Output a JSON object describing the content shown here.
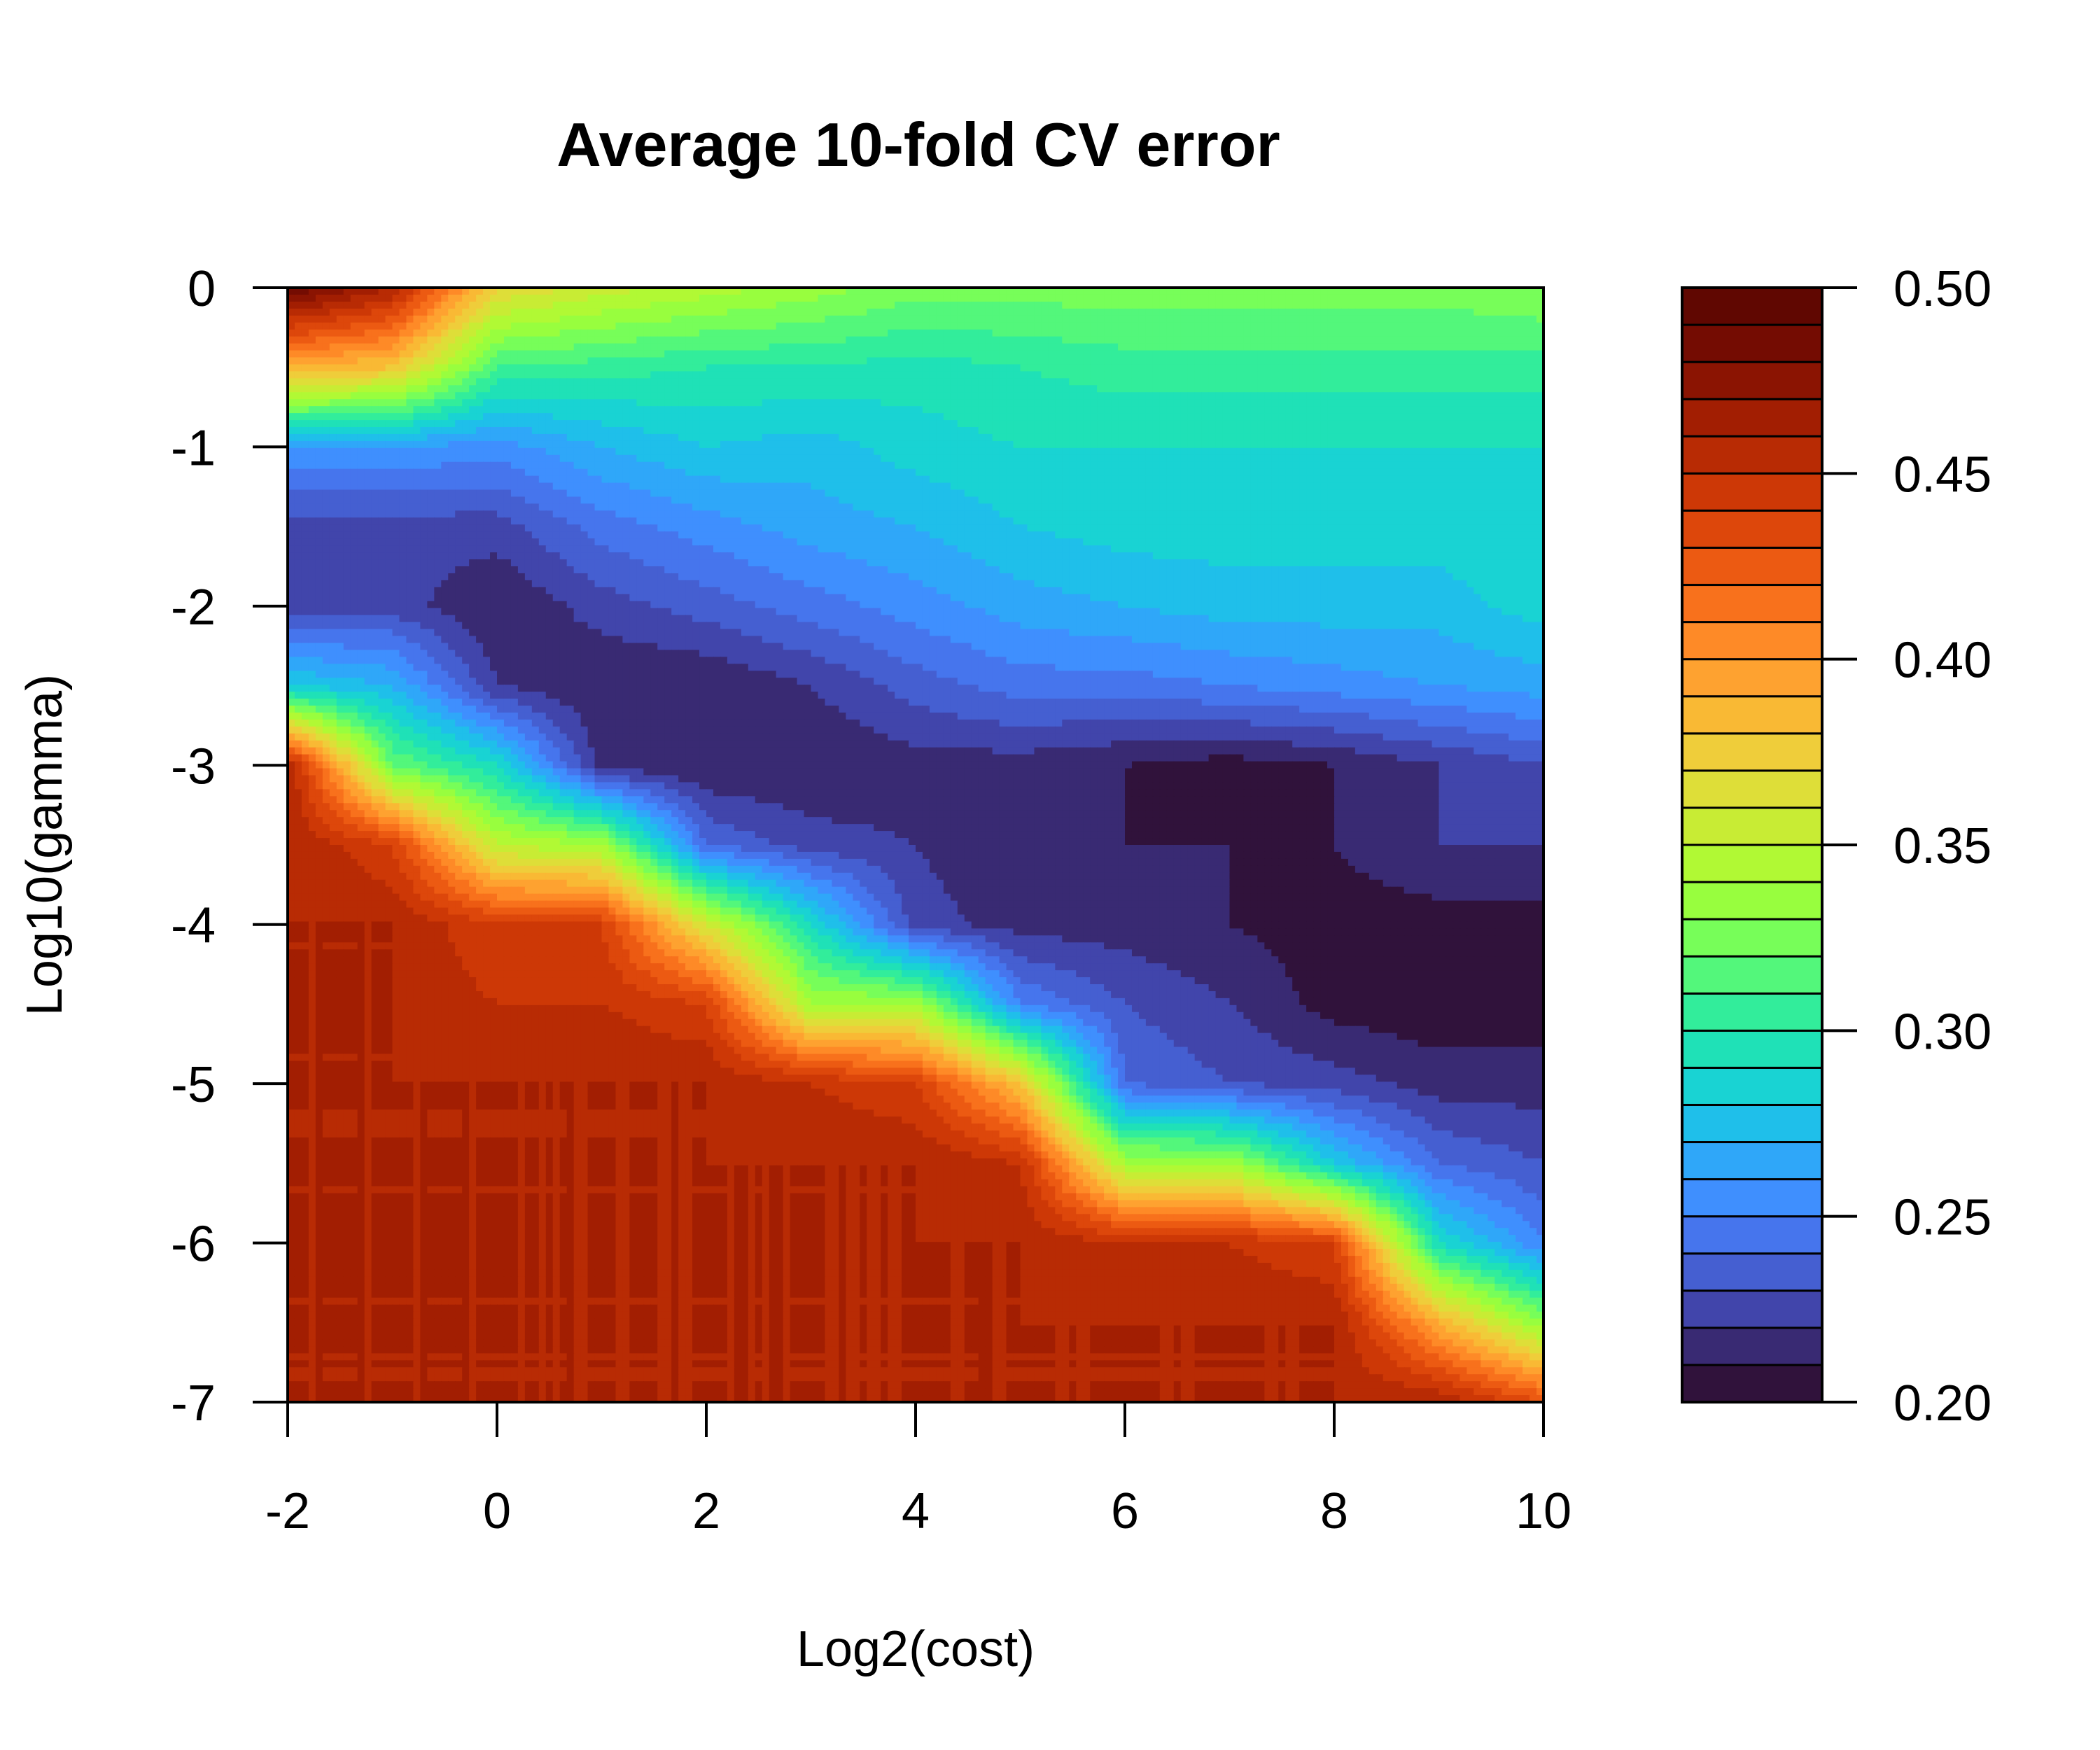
{
  "chart_data": {
    "type": "contour",
    "title": "Average 10-fold CV error",
    "xlabel": "Log2(cost)",
    "ylabel": "Log10(gamma)",
    "xlim": [
      -2,
      10
    ],
    "ylim": [
      -7,
      0
    ],
    "x_ticks": [
      -2,
      0,
      2,
      4,
      6,
      8,
      10
    ],
    "x_tick_labels": [
      "-2",
      "0",
      "2",
      "4",
      "6",
      "8",
      "10"
    ],
    "y_ticks": [
      0,
      -1,
      -2,
      -3,
      -4,
      -5,
      -6,
      -7
    ],
    "y_tick_labels": [
      "0",
      "-1",
      "-2",
      "-3",
      "-4",
      "-5",
      "-6",
      "-7"
    ],
    "colorbar": {
      "min": 0.2,
      "max": 0.5,
      "ticks": [
        0.5,
        0.45,
        0.4,
        0.35,
        0.3,
        0.25,
        0.2
      ],
      "tick_labels": [
        "0.50",
        "0.45",
        "0.40",
        "0.35",
        "0.30",
        "0.25",
        "0.20"
      ],
      "bands": 30,
      "colors": [
        "#30123b",
        "#392a73",
        "#4145ab",
        "#455fd1",
        "#4675ed",
        "#3f8ffe",
        "#2fa7f9",
        "#1fbfea",
        "#19d3d3",
        "#1fe1b7",
        "#32ed9b",
        "#53f77b",
        "#77fe59",
        "#98fe3e",
        "#b1f934",
        "#c8ec34",
        "#dede38",
        "#efcd3a",
        "#f9b934",
        "#fea230",
        "#fe8a27",
        "#f8711c",
        "#ec5a12",
        "#dd470b",
        "#cd3806",
        "#b82b04",
        "#a21e02",
        "#8b1402",
        "#740c02",
        "#600701"
      ]
    },
    "grid_x": [
      -2,
      -1,
      0,
      1,
      2,
      3,
      4,
      5,
      6,
      7,
      8,
      9,
      10
    ],
    "grid_y": [
      0,
      -0.5,
      -1,
      -1.5,
      -2,
      -2.5,
      -3,
      -3.5,
      -4,
      -4.5,
      -5,
      -5.5,
      -6,
      -6.5,
      -7
    ],
    "z_note": "rows correspond to grid_y, columns to grid_x; values are CV error",
    "z": [
      [
        0.49,
        0.46,
        0.37,
        0.355,
        0.345,
        0.335,
        0.325,
        0.325,
        0.325,
        0.325,
        0.325,
        0.325,
        0.33
      ],
      [
        0.39,
        0.38,
        0.31,
        0.305,
        0.3,
        0.3,
        0.295,
        0.3,
        0.305,
        0.305,
        0.305,
        0.305,
        0.305
      ],
      [
        0.26,
        0.26,
        0.255,
        0.27,
        0.28,
        0.275,
        0.285,
        0.29,
        0.29,
        0.29,
        0.29,
        0.29,
        0.29
      ],
      [
        0.225,
        0.225,
        0.225,
        0.245,
        0.255,
        0.265,
        0.27,
        0.28,
        0.285,
        0.285,
        0.285,
        0.285,
        0.29
      ],
      [
        0.225,
        0.225,
        0.21,
        0.225,
        0.235,
        0.245,
        0.255,
        0.265,
        0.27,
        0.275,
        0.275,
        0.275,
        0.285
      ],
      [
        0.28,
        0.27,
        0.22,
        0.21,
        0.21,
        0.22,
        0.235,
        0.245,
        0.245,
        0.25,
        0.255,
        0.26,
        0.265
      ],
      [
        0.46,
        0.32,
        0.29,
        0.215,
        0.21,
        0.21,
        0.215,
        0.215,
        0.21,
        0.205,
        0.21,
        0.22,
        0.23
      ],
      [
        0.46,
        0.44,
        0.35,
        0.34,
        0.24,
        0.225,
        0.22,
        0.21,
        0.21,
        0.21,
        0.21,
        0.22,
        0.22
      ],
      [
        0.46,
        0.46,
        0.44,
        0.44,
        0.36,
        0.29,
        0.225,
        0.215,
        0.215,
        0.21,
        0.205,
        0.205,
        0.205
      ],
      [
        0.46,
        0.46,
        0.45,
        0.45,
        0.44,
        0.34,
        0.34,
        0.25,
        0.23,
        0.22,
        0.205,
        0.203,
        0.205
      ],
      [
        0.46,
        0.46,
        0.46,
        0.46,
        0.46,
        0.45,
        0.44,
        0.38,
        0.24,
        0.23,
        0.225,
        0.215,
        0.215
      ],
      [
        0.46,
        0.46,
        0.46,
        0.46,
        0.46,
        0.46,
        0.46,
        0.45,
        0.34,
        0.34,
        0.28,
        0.24,
        0.23
      ],
      [
        0.46,
        0.46,
        0.46,
        0.46,
        0.46,
        0.46,
        0.46,
        0.46,
        0.45,
        0.45,
        0.44,
        0.29,
        0.25
      ],
      [
        0.46,
        0.46,
        0.46,
        0.46,
        0.46,
        0.46,
        0.46,
        0.46,
        0.46,
        0.46,
        0.46,
        0.39,
        0.33
      ],
      [
        0.46,
        0.46,
        0.46,
        0.46,
        0.46,
        0.46,
        0.46,
        0.46,
        0.46,
        0.46,
        0.46,
        0.46,
        0.43
      ]
    ]
  }
}
